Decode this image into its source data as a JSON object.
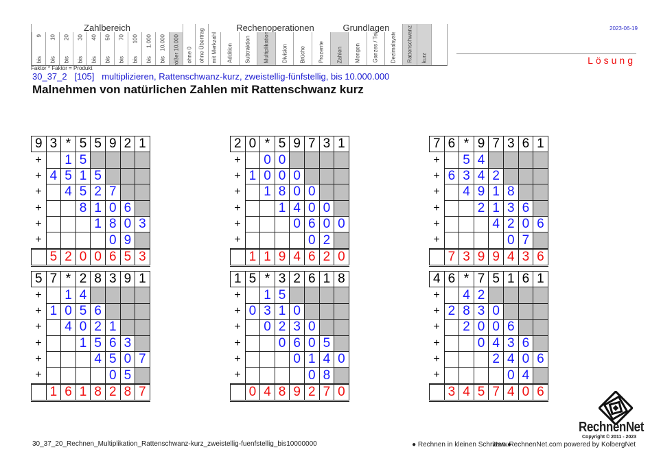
{
  "header": {
    "groups": {
      "zahlbereich": "Zahlbereich",
      "rechenoperationen": "Rechenoperationen",
      "grundlagen": "Grundlagen"
    },
    "zahlbereich_cols": [
      {
        "top": "9",
        "bottom": "bis"
      },
      {
        "top": "10",
        "bottom": "bis"
      },
      {
        "top": "20",
        "bottom": "bis"
      },
      {
        "top": "30",
        "bottom": "bis"
      },
      {
        "top": "40",
        "bottom": "bis"
      },
      {
        "top": "50",
        "bottom": "bis"
      },
      {
        "top": "70",
        "bottom": "bis"
      },
      {
        "top": "100",
        "bottom": "bis"
      },
      {
        "top": "1.000",
        "bottom": "bis"
      },
      {
        "top": "10.000",
        "bottom": "bis"
      },
      {
        "top": "größer 10.000",
        "bottom": "",
        "shaded": true
      }
    ],
    "extra_cols": [
      "ohne 0",
      "ohne Übertrag",
      "mit Merkzahl"
    ],
    "rechen_cols": [
      {
        "label": "Addition"
      },
      {
        "label": "Subtraktion"
      },
      {
        "label": "Multiplikation",
        "shaded": true
      },
      {
        "label": "Division"
      },
      {
        "label": "Brüche"
      },
      {
        "label": "Prozente"
      }
    ],
    "grund_cols": [
      {
        "label": "Zahlen",
        "shaded": true
      },
      {
        "label": "Mengen"
      },
      {
        "label": "Ganzes / Teile"
      },
      {
        "label": "Dezimalsystem"
      }
    ],
    "tags": [
      {
        "label": "Rattenschwanz",
        "shaded": true
      },
      {
        "label": "kurz",
        "shaded": true
      }
    ],
    "formula": "Faktor * Faktor = Produkt",
    "date": "2023-06-19",
    "solution_label": "Lösung"
  },
  "subtitle": "30_37_2   [105]   multiplizieren, Rattenschwanz-kurz, zweistellig-fünfstellig, bis 10.000.000",
  "title": "Malnehmen von natürlichen Zahlen mit Rattenschwanz kurz",
  "colors": {
    "partial": "#1a1aff",
    "result": "#f01010",
    "shade": "#c0c0c0",
    "subtitle": "#1a1ad0"
  },
  "exercises": [
    {
      "head": [
        "9",
        "3",
        "*",
        "5",
        "5",
        "9",
        "2",
        "1"
      ],
      "rows": [
        [
          "",
          "1",
          "5",
          "",
          "",
          "",
          ""
        ],
        [
          "4",
          "5",
          "1",
          "5",
          "",
          "",
          ""
        ],
        [
          "",
          "4",
          "5",
          "2",
          "7",
          "",
          ""
        ],
        [
          "",
          "",
          "8",
          "1",
          "0",
          "6",
          ""
        ],
        [
          "",
          "",
          "",
          "1",
          "8",
          "0",
          "3"
        ],
        [
          "",
          "",
          "",
          "",
          "0",
          "9",
          ""
        ]
      ],
      "result": [
        "5",
        "2",
        "0",
        "0",
        "6",
        "5",
        "3"
      ]
    },
    {
      "head": [
        "2",
        "0",
        "*",
        "5",
        "9",
        "7",
        "3",
        "1"
      ],
      "rows": [
        [
          "",
          "0",
          "0",
          "",
          "",
          "",
          ""
        ],
        [
          "1",
          "0",
          "0",
          "0",
          "",
          "",
          ""
        ],
        [
          "",
          "1",
          "8",
          "0",
          "0",
          "",
          ""
        ],
        [
          "",
          "",
          "1",
          "4",
          "0",
          "0",
          ""
        ],
        [
          "",
          "",
          "",
          "0",
          "6",
          "0",
          "0"
        ],
        [
          "",
          "",
          "",
          "",
          "0",
          "2",
          ""
        ]
      ],
      "result": [
        "1",
        "1",
        "9",
        "4",
        "6",
        "2",
        "0"
      ]
    },
    {
      "head": [
        "7",
        "6",
        "*",
        "9",
        "7",
        "3",
        "6",
        "1"
      ],
      "rows": [
        [
          "",
          "5",
          "4",
          "",
          "",
          "",
          ""
        ],
        [
          "6",
          "3",
          "4",
          "2",
          "",
          "",
          ""
        ],
        [
          "",
          "4",
          "9",
          "1",
          "8",
          "",
          ""
        ],
        [
          "",
          "",
          "2",
          "1",
          "3",
          "6",
          ""
        ],
        [
          "",
          "",
          "",
          "4",
          "2",
          "0",
          "6"
        ],
        [
          "",
          "",
          "",
          "",
          "0",
          "7",
          ""
        ]
      ],
      "result": [
        "7",
        "3",
        "9",
        "9",
        "4",
        "3",
        "6"
      ]
    },
    {
      "head": [
        "5",
        "7",
        "*",
        "2",
        "8",
        "3",
        "9",
        "1"
      ],
      "rows": [
        [
          "",
          "1",
          "4",
          "",
          "",
          "",
          ""
        ],
        [
          "1",
          "0",
          "5",
          "6",
          "",
          "",
          ""
        ],
        [
          "",
          "4",
          "0",
          "2",
          "1",
          "",
          ""
        ],
        [
          "",
          "",
          "1",
          "5",
          "6",
          "3",
          ""
        ],
        [
          "",
          "",
          "",
          "4",
          "5",
          "0",
          "7"
        ],
        [
          "",
          "",
          "",
          "",
          "0",
          "5",
          ""
        ]
      ],
      "result": [
        "1",
        "6",
        "1",
        "8",
        "2",
        "8",
        "7"
      ]
    },
    {
      "head": [
        "1",
        "5",
        "*",
        "3",
        "2",
        "6",
        "1",
        "8"
      ],
      "rows": [
        [
          "",
          "1",
          "5",
          "",
          "",
          "",
          ""
        ],
        [
          "0",
          "3",
          "1",
          "0",
          "",
          "",
          ""
        ],
        [
          "",
          "0",
          "2",
          "3",
          "0",
          "",
          ""
        ],
        [
          "",
          "",
          "0",
          "6",
          "0",
          "5",
          ""
        ],
        [
          "",
          "",
          "",
          "0",
          "1",
          "4",
          "0"
        ],
        [
          "",
          "",
          "",
          "",
          "0",
          "8",
          ""
        ]
      ],
      "result": [
        "0",
        "4",
        "8",
        "9",
        "2",
        "7",
        "0"
      ]
    },
    {
      "head": [
        "4",
        "6",
        "*",
        "7",
        "5",
        "1",
        "6",
        "1"
      ],
      "rows": [
        [
          "",
          "4",
          "2",
          "",
          "",
          "",
          ""
        ],
        [
          "2",
          "8",
          "3",
          "0",
          "",
          "",
          ""
        ],
        [
          "",
          "2",
          "0",
          "0",
          "6",
          "",
          ""
        ],
        [
          "",
          "",
          "0",
          "4",
          "3",
          "6",
          ""
        ],
        [
          "",
          "",
          "",
          "2",
          "4",
          "0",
          "6"
        ],
        [
          "",
          "",
          "",
          "",
          "0",
          "4",
          ""
        ]
      ],
      "result": [
        "3",
        "4",
        "5",
        "7",
        "4",
        "0",
        "6"
      ]
    }
  ],
  "plus_sign": "+",
  "footer": {
    "filename": "30_37_20_Rechnen_Multiplikation_Rattenschwanz-kurz_zweistellig-fuenfstellig_bis10000000",
    "slogan": "● Rechnen in kleinen Schritten ●",
    "site": "www.RechnenNet.com powered by KolbergNet",
    "logo_text": "RechnenNet",
    "copyright": "Copyright © 2011 - 2023"
  }
}
